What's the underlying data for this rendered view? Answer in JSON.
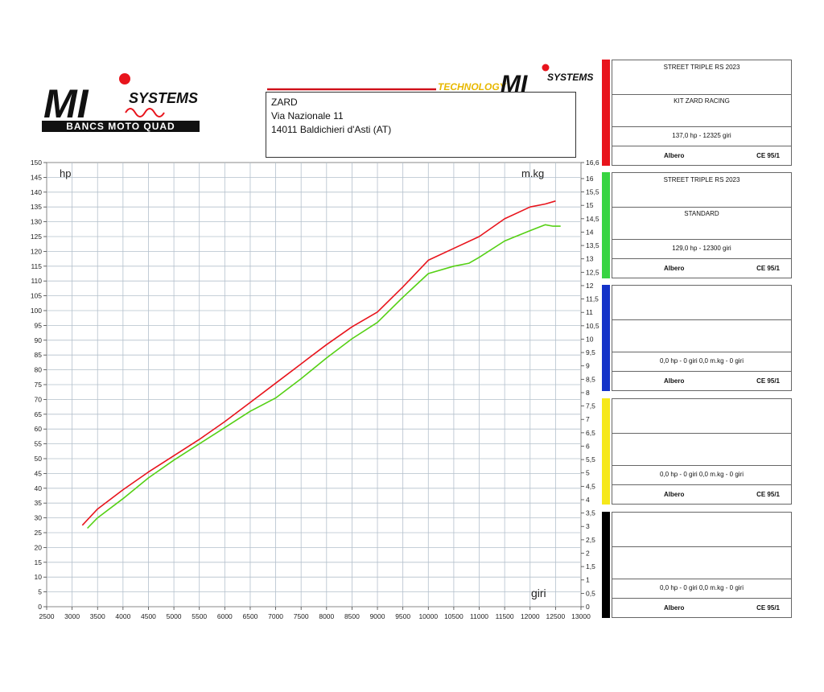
{
  "logo_left": {
    "brand": "MI",
    "subtitle": "SYSTEMS",
    "tagline": "BANCS MOTO QUAD"
  },
  "logo_right": {
    "text1": "TECHNOLOGY",
    "brand": "MI",
    "subtitle": "SYSTEMS"
  },
  "address": {
    "line1": "ZARD",
    "line2": "Via Nazionale 11",
    "line3": "14011 Baldichieri d'Asti (AT)"
  },
  "colors": {
    "red": "#e8141c",
    "green": "#55d014",
    "blue": "#1432c8",
    "yellow": "#f6e81a",
    "black": "#000000"
  },
  "runs": [
    {
      "color": "#e8141c",
      "model": "STREET TRIPLE RS  2023",
      "config": "KIT ZARD RACING",
      "result": "137,0 hp - 12325 giri",
      "left": "Albero",
      "right": "CE 95/1"
    },
    {
      "color": "#38d442",
      "model": "STREET TRIPLE RS 2023",
      "config": "STANDARD",
      "result": "129,0 hp - 12300 giri",
      "left": "Albero",
      "right": "CE 95/1"
    },
    {
      "color": "#1432c8",
      "model": "",
      "config": "",
      "result": "0,0 hp - 0 giri      0,0 m.kg - 0 giri",
      "left": "Albero",
      "right": "CE 95/1"
    },
    {
      "color": "#f6e81a",
      "model": "",
      "config": "",
      "result": "0,0 hp - 0 giri      0,0 m.kg - 0 giri",
      "left": "Albero",
      "right": "CE 95/1"
    },
    {
      "color": "#000000",
      "model": "",
      "config": "",
      "result": "0,0 hp - 0 giri      0,0 m.kg - 0 giri",
      "left": "Albero",
      "right": "CE 95/1"
    }
  ],
  "chart_data": {
    "type": "line",
    "title": "",
    "xlabel": "giri",
    "ylabel": "hp",
    "y2label": "m.kg",
    "xlim": [
      2500,
      13000
    ],
    "ylim": [
      0,
      150
    ],
    "y2lim": [
      0,
      16.6
    ],
    "x_ticks": [
      2500,
      3000,
      3500,
      4000,
      4500,
      5000,
      5500,
      6000,
      6500,
      7000,
      7500,
      8000,
      8500,
      9000,
      9500,
      10000,
      10500,
      11000,
      11500,
      12000,
      12500,
      13000
    ],
    "y_ticks": [
      0,
      5,
      10,
      15,
      20,
      25,
      30,
      35,
      40,
      45,
      50,
      55,
      60,
      65,
      70,
      75,
      80,
      85,
      90,
      95,
      100,
      105,
      110,
      115,
      120,
      125,
      130,
      135,
      140,
      145,
      150
    ],
    "y2_ticks": [
      "0",
      "0,5",
      "1",
      "1,5",
      "2",
      "2,5",
      "3",
      "3,5",
      "4",
      "4,5",
      "5",
      "5,5",
      "6",
      "6,5",
      "7",
      "7,5",
      "8",
      "8,5",
      "9",
      "9,5",
      "10",
      "10,5",
      "11",
      "11,5",
      "12",
      "12,5",
      "13",
      "13,5",
      "14",
      "14,5",
      "15",
      "15,5",
      "16",
      "16,6"
    ],
    "grid": true,
    "series": [
      {
        "color": "#e8141c",
        "x": [
          3200,
          3500,
          4000,
          4500,
          5000,
          5500,
          6000,
          6500,
          7000,
          7500,
          8000,
          8500,
          9000,
          9500,
          10000,
          10500,
          11000,
          11500,
          12000,
          12300,
          12500
        ],
        "y": [
          27.5,
          33,
          39.5,
          45.5,
          51,
          56.5,
          62.5,
          69,
          75.5,
          82,
          88.5,
          94.5,
          99.5,
          108,
          117,
          121,
          125,
          131,
          135,
          136,
          137
        ]
      },
      {
        "color": "#55d014",
        "x": [
          3300,
          3500,
          4000,
          4500,
          5000,
          5500,
          6000,
          6500,
          7000,
          7500,
          8000,
          8500,
          9000,
          9500,
          10000,
          10500,
          10800,
          11000,
          11500,
          12000,
          12300,
          12450,
          12600
        ],
        "y": [
          26.5,
          30,
          36.5,
          43.5,
          49.5,
          55,
          60.5,
          66,
          70.5,
          77,
          84,
          90.5,
          96,
          104.5,
          112.5,
          115,
          116,
          118,
          123.5,
          127,
          129,
          128.5,
          128.5
        ]
      }
    ]
  }
}
